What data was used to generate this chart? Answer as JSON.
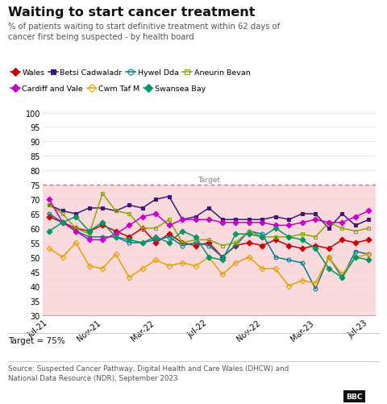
{
  "title": "Waiting to start cancer treatment",
  "subtitle": "% of patients waiting to start definitive treatment within 62 days of\ncancer first being suspected - by health board",
  "target_note": "Target = 75%",
  "source": "Source: Suspected Cancer Pathway, Digital Health and Care Wales (DHCW) and\nNational Data Resource (NDR), September 2023",
  "target_value": 75,
  "ylim": [
    30,
    100
  ],
  "yticks": [
    30,
    35,
    40,
    45,
    50,
    55,
    60,
    65,
    70,
    75,
    80,
    85,
    90,
    95,
    100
  ],
  "x_labels": [
    "Jul-21",
    "Nov-21",
    "Mar-22",
    "Jul-22",
    "Nov-22",
    "Mar-23",
    "Jul-23"
  ],
  "x_indices": [
    0,
    4,
    8,
    12,
    16,
    20,
    24
  ],
  "n_points": 25,
  "series": {
    "Wales": {
      "color": "#cc0000",
      "marker": "D",
      "fillstyle": "full",
      "values": [
        64,
        62,
        60,
        59,
        61,
        59,
        57,
        60,
        55,
        58,
        55,
        54,
        55,
        50,
        54,
        55,
        54,
        56,
        54,
        53,
        54,
        53,
        56,
        55,
        56
      ]
    },
    "Betsi Cadwaladr": {
      "color": "#3d1a78",
      "marker": "s",
      "fillstyle": "full",
      "values": [
        68,
        66,
        65,
        67,
        67,
        66,
        68,
        67,
        70,
        71,
        63,
        64,
        67,
        63,
        63,
        63,
        63,
        64,
        63,
        65,
        65,
        60,
        65,
        61,
        63
      ]
    },
    "Hywel Dda": {
      "color": "#007c91",
      "marker": "o",
      "fillstyle": "none",
      "values": [
        65,
        62,
        59,
        57,
        57,
        57,
        55,
        55,
        56,
        57,
        54,
        55,
        54,
        50,
        54,
        59,
        58,
        50,
        49,
        48,
        39,
        50,
        43,
        52,
        51
      ]
    },
    "Aneurin Bevan": {
      "color": "#8aaa00",
      "marker": "s",
      "fillstyle": "none",
      "values": [
        68,
        65,
        60,
        58,
        72,
        66,
        65,
        60,
        60,
        63,
        55,
        56,
        56,
        54,
        55,
        59,
        57,
        57,
        57,
        58,
        57,
        62,
        60,
        59,
        60
      ]
    },
    "Cardiff and Vale": {
      "color": "#cc00cc",
      "marker": "D",
      "fillstyle": "full",
      "values": [
        70,
        62,
        59,
        56,
        56,
        58,
        61,
        64,
        65,
        61,
        63,
        63,
        63,
        62,
        62,
        62,
        62,
        61,
        61,
        62,
        63,
        62,
        62,
        64,
        66
      ]
    },
    "Cwm Taf M": {
      "color": "#e8a000",
      "marker": "D",
      "fillstyle": "none",
      "values": [
        53,
        50,
        55,
        47,
        46,
        51,
        43,
        46,
        49,
        47,
        48,
        47,
        50,
        44,
        48,
        50,
        46,
        46,
        40,
        42,
        41,
        50,
        44,
        50,
        51
      ]
    },
    "Swansea Bay": {
      "color": "#009966",
      "marker": "D",
      "fillstyle": "full",
      "values": [
        59,
        62,
        64,
        59,
        62,
        57,
        56,
        55,
        57,
        55,
        59,
        57,
        50,
        49,
        58,
        58,
        57,
        60,
        57,
        56,
        53,
        46,
        43,
        50,
        49
      ]
    }
  },
  "background_color": "#ffffff",
  "shaded_region_color": "#fadadd",
  "grid_color": "#dddddd",
  "target_line_color": "#888888",
  "legend_row1": [
    "Wales",
    "Betsi Cadwaladr",
    "Hywel Dda",
    "Aneurin Bevan"
  ],
  "legend_row2": [
    "Cardiff and Vale",
    "Cwm Taf M",
    "Swansea Bay"
  ]
}
